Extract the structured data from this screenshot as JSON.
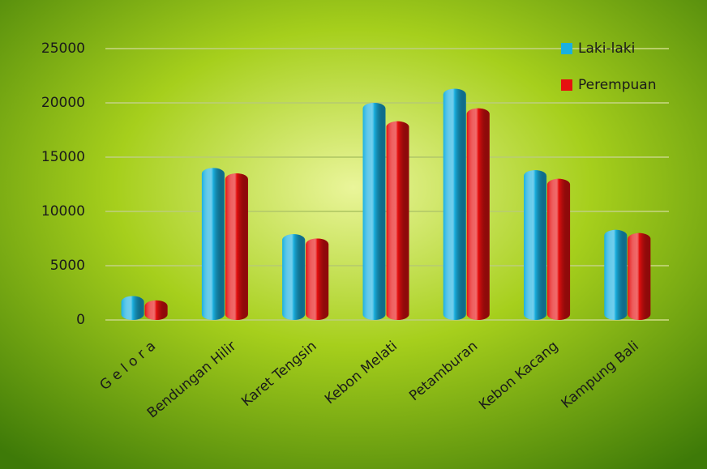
{
  "chart_data": {
    "type": "bar",
    "categories": [
      "G e l o r a",
      "Bendungan Hilir",
      "Karet Tengsin",
      "Kebon Melati",
      "Petamburan",
      "Kebon Kacang",
      "Kampung Bali"
    ],
    "series": [
      {
        "name": "Laki-laki",
        "color": "#1ab0e0",
        "values": [
          2200,
          14000,
          7900,
          20000,
          21300,
          13800,
          8300
        ]
      },
      {
        "name": "Perempuan",
        "color": "#e61010",
        "values": [
          1800,
          13500,
          7500,
          18300,
          19500,
          13000,
          8000
        ]
      }
    ],
    "ylim": [
      0,
      25000
    ],
    "yticks": [
      0,
      5000,
      10000,
      15000,
      20000,
      25000
    ],
    "grid": true,
    "legend": "top-right"
  }
}
